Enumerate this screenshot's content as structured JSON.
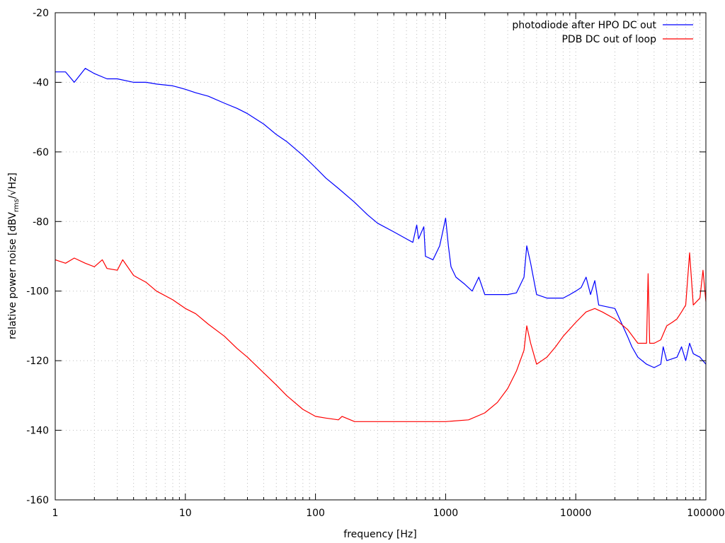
{
  "chart_data": {
    "type": "line",
    "title": "",
    "xlabel": "frequency [Hz]",
    "ylabel": {
      "prefix": "relative power noise [dBV",
      "subscript": "rms",
      "suffix": "/√Hz]"
    },
    "x_scale": "log",
    "xlim": [
      1,
      100000
    ],
    "ylim": [
      -160,
      -20
    ],
    "x_ticks": [
      1,
      10,
      100,
      1000,
      10000,
      100000
    ],
    "x_tick_labels": [
      "1",
      "10",
      "100",
      "1000",
      "10000",
      "100000"
    ],
    "y_ticks": [
      -160,
      -140,
      -120,
      -100,
      -80,
      -60,
      -40,
      -20
    ],
    "y_tick_labels": [
      "-160",
      "-140",
      "-120",
      "-100",
      "-80",
      "-60",
      "-40",
      "-20"
    ],
    "grid": true,
    "legend_position": "top-right",
    "series": [
      {
        "name": "photodiode after HPO DC out",
        "color": "#0000ff",
        "points": [
          [
            1,
            -37
          ],
          [
            1.2,
            -37
          ],
          [
            1.4,
            -40
          ],
          [
            1.7,
            -36
          ],
          [
            2,
            -37.5
          ],
          [
            2.5,
            -39
          ],
          [
            3,
            -39
          ],
          [
            4,
            -40
          ],
          [
            5,
            -40
          ],
          [
            6,
            -40.5
          ],
          [
            8,
            -41
          ],
          [
            10,
            -42
          ],
          [
            12,
            -43
          ],
          [
            15,
            -44
          ],
          [
            20,
            -46
          ],
          [
            25,
            -47.5
          ],
          [
            30,
            -49
          ],
          [
            40,
            -52
          ],
          [
            50,
            -55
          ],
          [
            60,
            -57
          ],
          [
            80,
            -61
          ],
          [
            100,
            -64.5
          ],
          [
            120,
            -67.5
          ],
          [
            150,
            -70.5
          ],
          [
            200,
            -74.5
          ],
          [
            250,
            -78
          ],
          [
            300,
            -80.5
          ],
          [
            400,
            -83
          ],
          [
            500,
            -85
          ],
          [
            560,
            -86
          ],
          [
            600,
            -81
          ],
          [
            620,
            -85
          ],
          [
            680,
            -81.5
          ],
          [
            700,
            -90
          ],
          [
            800,
            -91
          ],
          [
            900,
            -87
          ],
          [
            950,
            -83
          ],
          [
            1000,
            -79
          ],
          [
            1050,
            -87
          ],
          [
            1100,
            -93
          ],
          [
            1200,
            -96
          ],
          [
            1400,
            -98
          ],
          [
            1600,
            -100
          ],
          [
            1800,
            -96
          ],
          [
            2000,
            -101
          ],
          [
            2500,
            -101
          ],
          [
            3000,
            -101
          ],
          [
            3500,
            -100.5
          ],
          [
            4000,
            -96
          ],
          [
            4200,
            -87
          ],
          [
            4500,
            -92
          ],
          [
            5000,
            -101
          ],
          [
            6000,
            -102
          ],
          [
            7000,
            -102
          ],
          [
            8000,
            -102
          ],
          [
            9000,
            -101
          ],
          [
            10000,
            -100
          ],
          [
            11000,
            -99
          ],
          [
            12000,
            -96
          ],
          [
            13000,
            -101
          ],
          [
            14000,
            -97
          ],
          [
            15000,
            -104
          ],
          [
            20000,
            -105
          ],
          [
            25000,
            -113
          ],
          [
            27000,
            -116
          ],
          [
            30000,
            -119
          ],
          [
            35000,
            -121
          ],
          [
            40000,
            -122
          ],
          [
            45000,
            -121
          ],
          [
            47000,
            -116
          ],
          [
            50000,
            -120
          ],
          [
            60000,
            -119
          ],
          [
            65000,
            -116
          ],
          [
            70000,
            -120
          ],
          [
            75000,
            -115
          ],
          [
            80000,
            -118
          ],
          [
            90000,
            -119
          ],
          [
            100000,
            -121
          ]
        ]
      },
      {
        "name": "PDB DC out of loop",
        "color": "#ff0000",
        "points": [
          [
            1,
            -91
          ],
          [
            1.2,
            -92
          ],
          [
            1.4,
            -90.5
          ],
          [
            1.7,
            -92
          ],
          [
            2,
            -93
          ],
          [
            2.3,
            -91
          ],
          [
            2.5,
            -93.5
          ],
          [
            3,
            -94
          ],
          [
            3.3,
            -91
          ],
          [
            4,
            -95.5
          ],
          [
            5,
            -97.5
          ],
          [
            6,
            -100
          ],
          [
            8,
            -102.5
          ],
          [
            10,
            -105
          ],
          [
            12,
            -106.5
          ],
          [
            15,
            -109.5
          ],
          [
            20,
            -113
          ],
          [
            25,
            -116.5
          ],
          [
            30,
            -119
          ],
          [
            40,
            -123.5
          ],
          [
            50,
            -127
          ],
          [
            60,
            -130
          ],
          [
            80,
            -134
          ],
          [
            100,
            -136
          ],
          [
            120,
            -136.5
          ],
          [
            150,
            -137
          ],
          [
            160,
            -136
          ],
          [
            200,
            -137.5
          ],
          [
            300,
            -137.5
          ],
          [
            500,
            -137.5
          ],
          [
            700,
            -137.5
          ],
          [
            1000,
            -137.5
          ],
          [
            1500,
            -137
          ],
          [
            2000,
            -135
          ],
          [
            2500,
            -132
          ],
          [
            3000,
            -128
          ],
          [
            3500,
            -123
          ],
          [
            4000,
            -117
          ],
          [
            4200,
            -110
          ],
          [
            4500,
            -115
          ],
          [
            5000,
            -121
          ],
          [
            6000,
            -119
          ],
          [
            7000,
            -116
          ],
          [
            8000,
            -113
          ],
          [
            10000,
            -109
          ],
          [
            12000,
            -106
          ],
          [
            14000,
            -105
          ],
          [
            16000,
            -106
          ],
          [
            20000,
            -108
          ],
          [
            25000,
            -111
          ],
          [
            30000,
            -115
          ],
          [
            35000,
            -115
          ],
          [
            36000,
            -95
          ],
          [
            37000,
            -115
          ],
          [
            40000,
            -115
          ],
          [
            45000,
            -114
          ],
          [
            50000,
            -110
          ],
          [
            55000,
            -109
          ],
          [
            60000,
            -108
          ],
          [
            65000,
            -106
          ],
          [
            70000,
            -104
          ],
          [
            75000,
            -89
          ],
          [
            80000,
            -104
          ],
          [
            90000,
            -102
          ],
          [
            95000,
            -94
          ],
          [
            100000,
            -103
          ]
        ]
      }
    ]
  }
}
